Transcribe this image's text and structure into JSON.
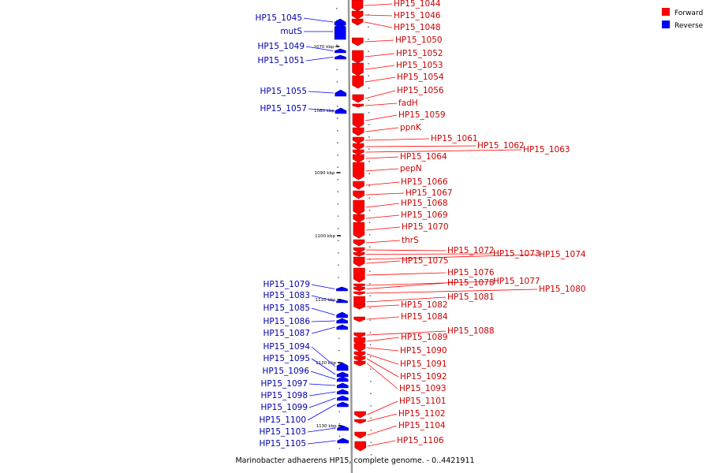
{
  "caption": "Marinobacter adhaerens HP15, complete genome. - 0..4421911",
  "legend": [
    {
      "label": "Forward",
      "color": "#ff0000"
    },
    {
      "label": "Reverse",
      "color": "#0000ff"
    }
  ],
  "colors": {
    "forward": "#ff0000",
    "reverse": "#0000ff",
    "forward_label": "#cc0000",
    "reverse_label": "#0000aa",
    "backbone": "#999999"
  },
  "ticks": [
    "1070 kbp",
    "1080 kbp",
    "1090 kbp",
    "1100 kbp",
    "1110 kbp",
    "1120 kbp",
    "1130 kbp"
  ],
  "forward_genes": [
    "HP15_1044",
    "HP15_1046",
    "HP15_1048",
    "HP15_1050",
    "HP15_1052",
    "HP15_1053",
    "HP15_1054",
    "HP15_1056",
    "fadH",
    "HP15_1059",
    "ppnK",
    "HP15_1061",
    "HP15_1062",
    "HP15_1063",
    "HP15_1064",
    "pepN",
    "HP15_1066",
    "HP15_1067",
    "HP15_1068",
    "HP15_1069",
    "HP15_1070",
    "thrS",
    "HP15_1072",
    "HP15_1073",
    "HP15_1074",
    "HP15_1075",
    "HP15_1076",
    "HP15_1077",
    "HP15_1078",
    "HP15_1080",
    "HP15_1081",
    "HP15_1082",
    "HP15_1084",
    "HP15_1088",
    "HP15_1089",
    "HP15_1090",
    "HP15_1091",
    "HP15_1092",
    "HP15_1093",
    "HP15_1101",
    "HP15_1102",
    "HP15_1104",
    "HP15_1106"
  ],
  "reverse_genes": [
    "HP15_1045",
    "mutS",
    "HP15_1049",
    "HP15_1051",
    "HP15_1055",
    "HP15_1057",
    "HP15_1079",
    "HP15_1083",
    "HP15_1085",
    "HP15_1086",
    "HP15_1087",
    "HP15_1094",
    "HP15_1095",
    "HP15_1096",
    "HP15_1097",
    "HP15_1098",
    "HP15_1099",
    "HP15_1100",
    "HP15_1103",
    "HP15_1105"
  ]
}
